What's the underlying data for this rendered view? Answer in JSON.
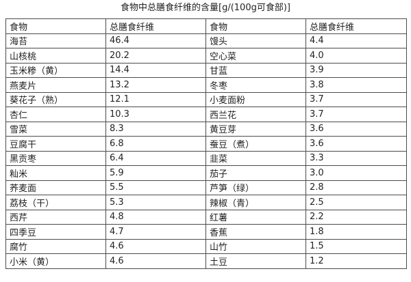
{
  "title": "食物中总膳食纤维的含量[g/(100g可食部)]",
  "headers": [
    "食物",
    "总膳食纤维",
    "食物",
    "总膳食纤维"
  ],
  "rows": [
    [
      "海苔",
      "46.4",
      "馒头",
      "4.4"
    ],
    [
      "山核桃",
      "20.2",
      "空心菜",
      "4.0"
    ],
    [
      "玉米糁（黄）",
      "14.4",
      "甘蓝",
      "3.9"
    ],
    [
      "燕麦片",
      "13.2",
      "冬枣",
      "3.8"
    ],
    [
      "葵花子（熟）",
      "12.1",
      "小麦面粉",
      "3.7"
    ],
    [
      "杏仁",
      "10.3",
      "西兰花",
      "3.7"
    ],
    [
      "雪菜",
      "8.3",
      "黄豆芽",
      "3.6"
    ],
    [
      "豆腐干",
      "6.8",
      "蚕豆（煮）",
      "3.6"
    ],
    [
      "黑贡枣",
      "6.4",
      "韭菜",
      "3.3"
    ],
    [
      "籼米",
      "5.9",
      "茄子",
      "3.0"
    ],
    [
      "荞麦面",
      "5.5",
      "芦笋（绿）",
      "2.8"
    ],
    [
      "荔枝（干）",
      "5.3",
      "辣椒（青）",
      "2.5"
    ],
    [
      "西芹",
      "4.8",
      "红薯",
      "2.2"
    ],
    [
      "四季豆",
      "4.7",
      "香蕉",
      "1.8"
    ],
    [
      "腐竹",
      "4.6",
      "山竹",
      "1.5"
    ],
    [
      "小米（黄）",
      "4.6",
      "土豆",
      "1.2"
    ]
  ]
}
